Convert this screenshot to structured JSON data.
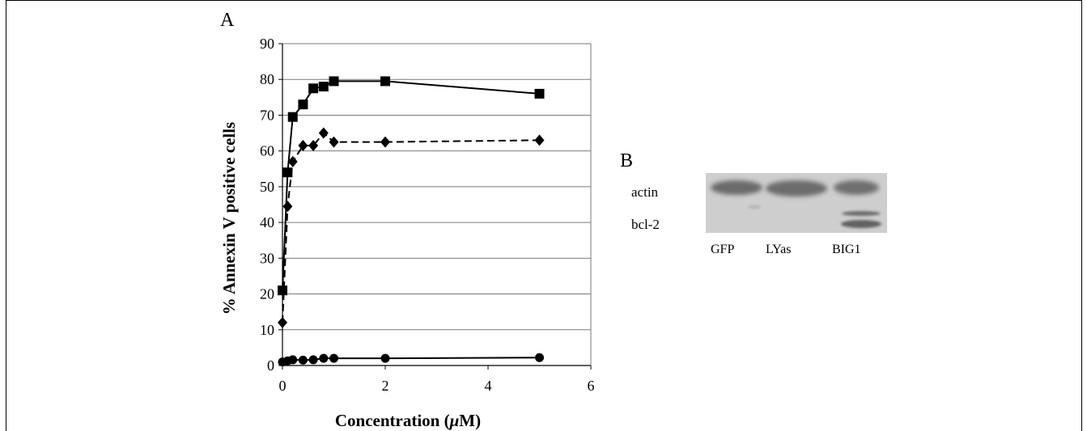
{
  "panel_a": {
    "letter": "A"
  },
  "panel_b": {
    "letter": "B",
    "band_labels": [
      "actin",
      "bcl-2"
    ],
    "lane_labels": [
      "GFP",
      "LYas",
      "BIG1"
    ]
  },
  "chart_data": {
    "type": "line",
    "title": "",
    "xlabel_prefix": "Concentration (",
    "xlabel_mu": "μ",
    "xlabel_suffix": "M)",
    "ylabel": "% Annexin V positive cells",
    "xlim": [
      0,
      6
    ],
    "ylim": [
      0,
      90
    ],
    "xticks": [
      0,
      2,
      4,
      6
    ],
    "yticks": [
      0,
      10,
      20,
      30,
      40,
      50,
      60,
      70,
      80,
      90
    ],
    "grid": "horizontal",
    "series": [
      {
        "marker": "square",
        "line": "solid",
        "x": [
          0,
          0.1,
          0.2,
          0.4,
          0.6,
          0.8,
          1,
          2,
          5
        ],
        "y": [
          21,
          54,
          69.5,
          73,
          77.5,
          78,
          79.5,
          79.5,
          76
        ]
      },
      {
        "marker": "diamond",
        "line": "dashed",
        "x": [
          0,
          0.1,
          0.2,
          0.4,
          0.6,
          0.8,
          1,
          2,
          5
        ],
        "y": [
          12,
          44.5,
          57,
          61.5,
          61.5,
          65,
          62.5,
          62.5,
          63
        ]
      },
      {
        "marker": "circle",
        "line": "solid",
        "x": [
          0,
          0.1,
          0.2,
          0.4,
          0.6,
          0.8,
          1,
          2,
          5
        ],
        "y": [
          1,
          1.3,
          1.6,
          1.5,
          1.6,
          2,
          2,
          2,
          2.2
        ]
      }
    ]
  }
}
